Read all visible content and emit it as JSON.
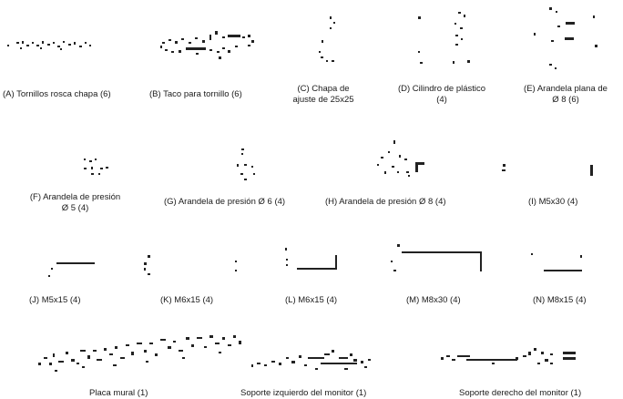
{
  "parts": {
    "A": {
      "label": "(A) Tornillos rosca chapa (6)"
    },
    "B": {
      "label": "(B) Taco para tornillo (6)"
    },
    "C": {
      "line1": "(C) Chapa de",
      "line2": "ajuste de 25x25"
    },
    "D": {
      "line1": "(D) Cilindro de plástico",
      "line2": "(4)"
    },
    "E": {
      "line1": "(E) Arandela plana de",
      "line2": "Ø 8 (6)"
    },
    "F": {
      "line1": "(F) Arandela  de presión",
      "line2": "Ø 5 (4)"
    },
    "G": {
      "label": "(G) Arandela de presión Ø 6 (4)"
    },
    "H": {
      "label": "(H) Arandela de presión Ø 8 (4)"
    },
    "I": {
      "label": "(I) M5x30 (4)"
    },
    "J": {
      "label": "(J) M5x15 (4)"
    },
    "K": {
      "label": "(K) M6x15 (4)"
    },
    "L": {
      "label": "(L) M6x15 (4)"
    },
    "M": {
      "label": "(M) M8x30 (4)"
    },
    "N": {
      "label": "(N) M8x15 (4)"
    },
    "wall": {
      "label": "Placa mural (1)"
    },
    "left": {
      "label": "Soporte izquierdo del monitor (1)"
    },
    "right": {
      "label": "Soporte derecho del monitor (1)"
    }
  }
}
